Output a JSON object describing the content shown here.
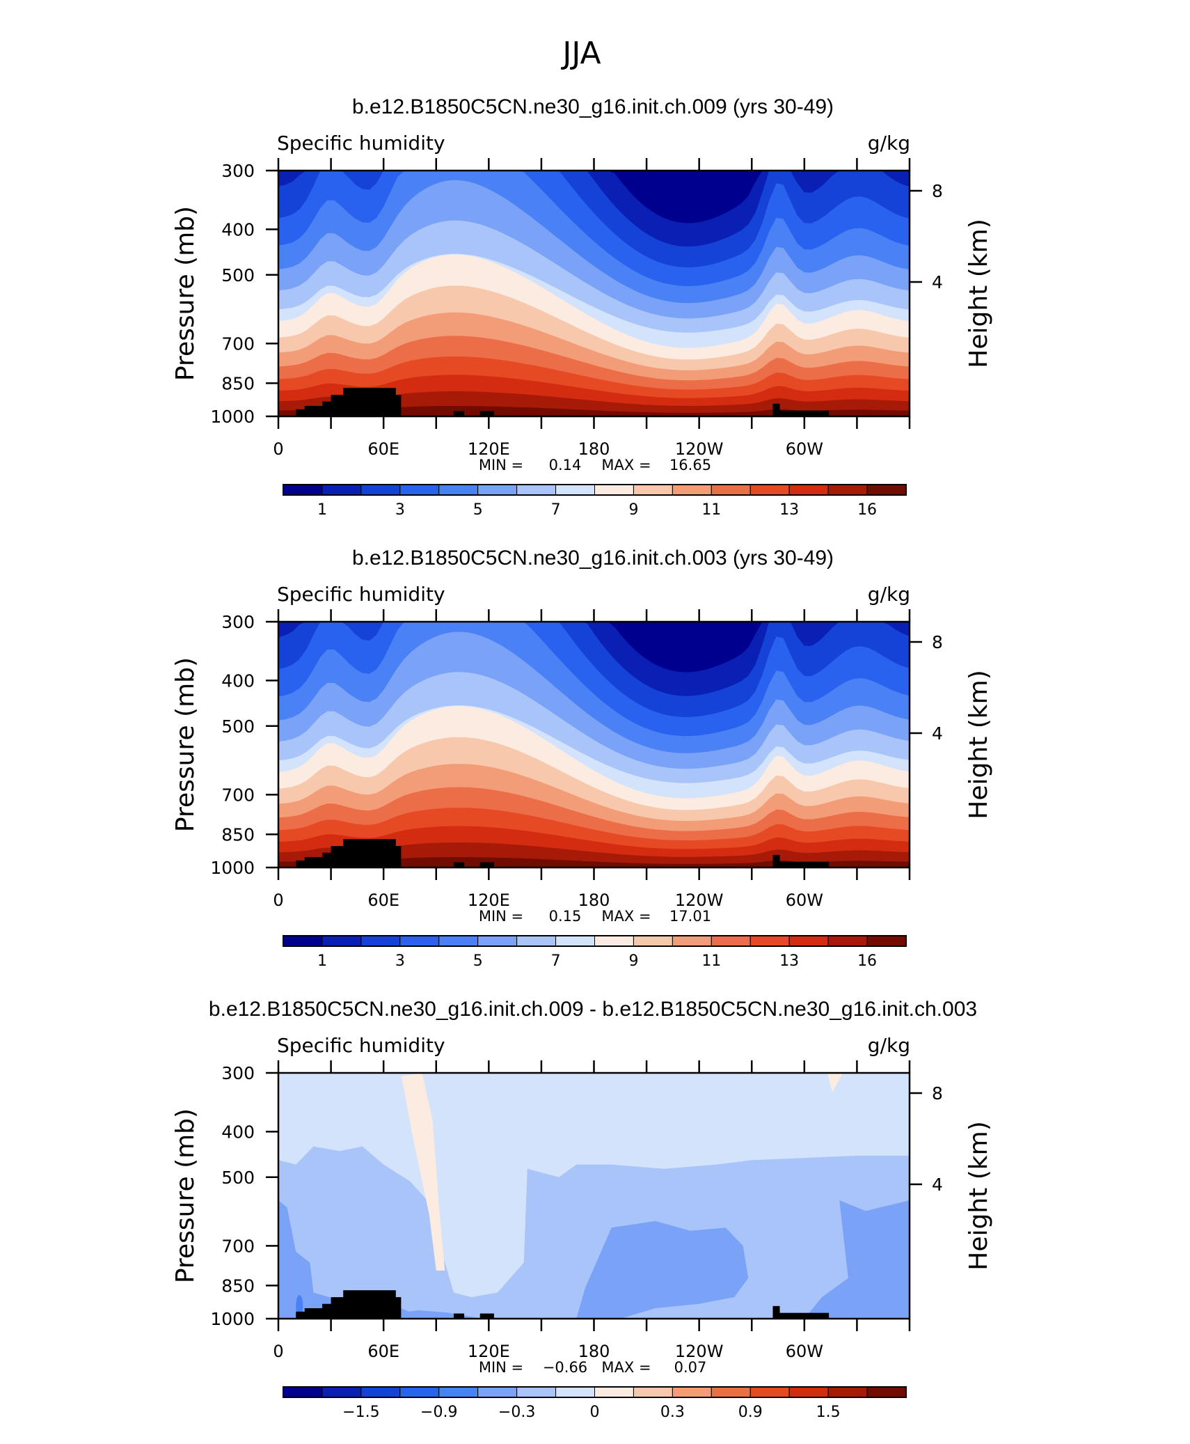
{
  "figure_title": "JJA",
  "palette": [
    "#00008f",
    "#0a1fb4",
    "#1543d8",
    "#2a62f0",
    "#4a82f5",
    "#7aa3f7",
    "#a9c4f8",
    "#d2e3fb",
    "#fcebe0",
    "#f7c8ac",
    "#f29c78",
    "#ec6e48",
    "#e64a24",
    "#d42c10",
    "#a81a08",
    "#720c00"
  ],
  "chart_data": [
    {
      "type": "contour",
      "title": "b.e12.B1850C5CN.ne30_g16.init.ch.009 (yrs 30-49)",
      "variable_label": "Specific humidity",
      "units": "g/kg",
      "ylabel": "Pressure (mb)",
      "ylabel_right": "Height (km)",
      "pressure_ticks": [
        "300",
        "400",
        "500",
        "700",
        "850",
        "1000"
      ],
      "height_ticks": [
        "8",
        "4"
      ],
      "lon_ticks": [
        "0",
        "60E",
        "120E",
        "180",
        "120W",
        "60W"
      ],
      "stats": {
        "min_label": "MIN =",
        "min": "0.14",
        "max_label": "MAX =",
        "max": "16.65"
      },
      "colorbar_labels": [
        "1",
        "3",
        "5",
        "7",
        "9",
        "11",
        "13",
        "16"
      ],
      "levels": [
        0.5,
        1,
        2,
        3,
        4,
        5,
        6,
        7,
        8,
        9,
        10,
        11,
        12,
        13,
        14,
        16
      ],
      "range": [
        0.14,
        16.65
      ]
    },
    {
      "type": "contour",
      "title": "b.e12.B1850C5CN.ne30_g16.init.ch.003 (yrs 30-49)",
      "variable_label": "Specific humidity",
      "units": "g/kg",
      "ylabel": "Pressure (mb)",
      "ylabel_right": "Height (km)",
      "pressure_ticks": [
        "300",
        "400",
        "500",
        "700",
        "850",
        "1000"
      ],
      "height_ticks": [
        "8",
        "4"
      ],
      "lon_ticks": [
        "0",
        "60E",
        "120E",
        "180",
        "120W",
        "60W"
      ],
      "stats": {
        "min_label": "MIN =",
        "min": "0.15",
        "max_label": "MAX =",
        "max": "17.01"
      },
      "colorbar_labels": [
        "1",
        "3",
        "5",
        "7",
        "9",
        "11",
        "13",
        "16"
      ],
      "levels": [
        0.5,
        1,
        2,
        3,
        4,
        5,
        6,
        7,
        8,
        9,
        10,
        11,
        12,
        13,
        14,
        16
      ],
      "range": [
        0.15,
        17.01
      ]
    },
    {
      "type": "contour",
      "title": "b.e12.B1850C5CN.ne30_g16.init.ch.009 - b.e12.B1850C5CN.ne30_g16.init.ch.003",
      "variable_label": "Specific humidity",
      "units": "g/kg",
      "ylabel": "Pressure (mb)",
      "ylabel_right": "Height (km)",
      "pressure_ticks": [
        "300",
        "400",
        "500",
        "700",
        "850",
        "1000"
      ],
      "height_ticks": [
        "8",
        "4"
      ],
      "lon_ticks": [
        "0",
        "60E",
        "120E",
        "180",
        "120W",
        "60W"
      ],
      "stats": {
        "min_label": "MIN =",
        "min": "−0.66",
        "max_label": "MAX =",
        "max": "0.07"
      },
      "colorbar_labels": [
        "−1.5",
        "−0.9",
        "−0.3",
        "0",
        "0.3",
        "0.9",
        "1.5"
      ],
      "levels": [
        -1.8,
        -1.5,
        -1.2,
        -0.9,
        -0.6,
        -0.3,
        -0.15,
        0,
        0.15,
        0.3,
        0.6,
        0.9,
        1.2,
        1.5,
        1.8
      ],
      "range": [
        -0.66,
        0.07
      ]
    }
  ]
}
